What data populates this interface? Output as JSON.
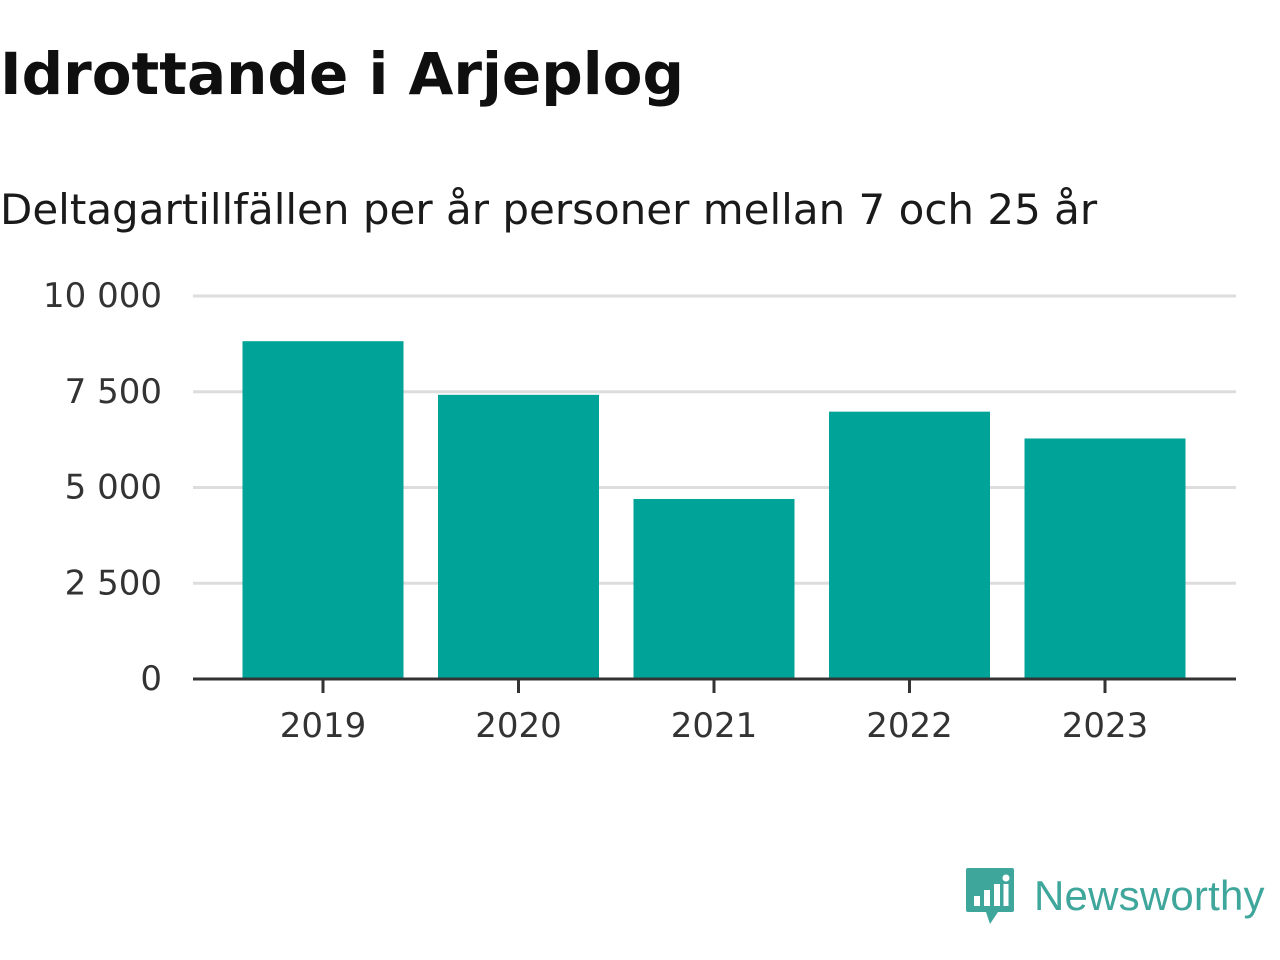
{
  "chart_data": {
    "type": "bar",
    "title": "Idrottande i Arjeplog",
    "subtitle": "Deltagartillfällen per år personer mellan 7 och 25 år",
    "categories": [
      "2019",
      "2020",
      "2021",
      "2022",
      "2023"
    ],
    "values": [
      8820,
      7420,
      4700,
      6980,
      6280
    ],
    "ylim": [
      0,
      10000
    ],
    "yticks": [
      0,
      2500,
      5000,
      7500,
      10000
    ],
    "ytick_labels": [
      "0",
      "2 500",
      "5 000",
      "7 500",
      "10 000"
    ],
    "grid": true,
    "colors": {
      "bar": "#00a398",
      "grid": "#dddddd",
      "axis": "#333333"
    }
  },
  "brand": {
    "name": "Newsworthy",
    "color": "#3fa69c"
  }
}
